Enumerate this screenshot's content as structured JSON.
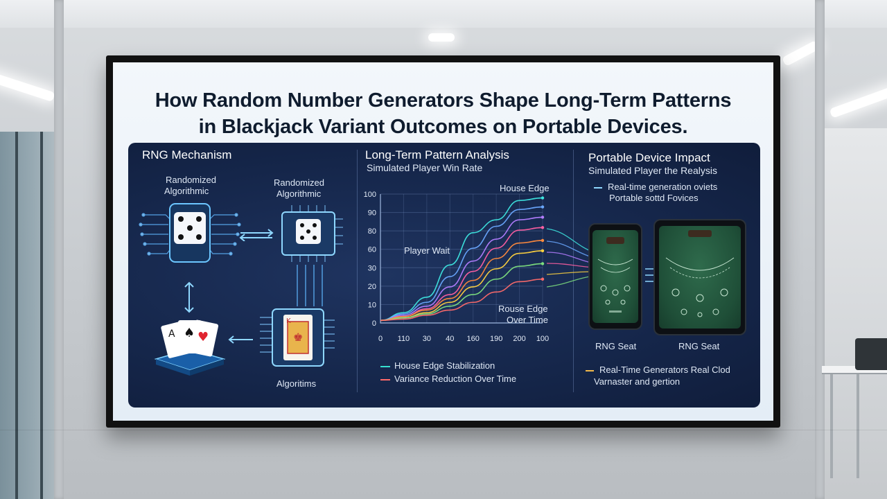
{
  "title_line1": "How Random Number Generators Shape Long-Term Patterns",
  "title_line2": "in Blackjack Variant Outcomes on Portable Devices.",
  "rng": {
    "title": "RNG Mechanism",
    "label_left": [
      "Randomized",
      "Algorithmic"
    ],
    "label_right": [
      "Randomized",
      "Algorithmic"
    ],
    "label_bottom": "Algoritims"
  },
  "pattern": {
    "title": "Long-Term Pattern Analysis",
    "subtitle": "Simulated Player Win Rate",
    "label_house_edge": "House Edge",
    "label_player": "Player Wait",
    "label_house_edge_time": [
      "Rouse Edge",
      "Over Time"
    ],
    "legend1": "House Edge Stabilization",
    "legend2": "Variance Reduction Over Time",
    "colors": {
      "legend1": "#37e0d0",
      "legend2": "#ff6a6a"
    }
  },
  "device": {
    "title": "Portable Device Impact",
    "subtitle": "Simulated Player the Realysis",
    "note_line1": "Real-time generation oviets",
    "note_line2": "Portable sottd Fovices",
    "label_phone": "RNG Seat",
    "label_tablet": "RNG Seat",
    "bottom_line1": "Real-Time Generators Real Clod",
    "bottom_line2": "Varnaster and gertion",
    "colors": {
      "bottom": "#f2b84a"
    }
  },
  "chart_data": {
    "type": "line",
    "x_ticks": [
      "0",
      "110",
      "30",
      "40",
      "160",
      "190",
      "200",
      "100"
    ],
    "y_ticks": [
      "100",
      "90",
      "80",
      "60",
      "30",
      "20",
      "10",
      "0"
    ],
    "series": [
      {
        "color": "#3ee6e0",
        "values": [
          2,
          8,
          20,
          45,
          70,
          80,
          95,
          97
        ]
      },
      {
        "color": "#6aa8ff",
        "values": [
          2,
          7,
          16,
          36,
          58,
          75,
          88,
          90
        ]
      },
      {
        "color": "#b37dff",
        "values": [
          2,
          6,
          13,
          28,
          48,
          65,
          80,
          82
        ]
      },
      {
        "color": "#ff5fa2",
        "values": [
          2,
          5,
          11,
          22,
          40,
          58,
          72,
          74
        ]
      },
      {
        "color": "#ff8a3d",
        "values": [
          2,
          5,
          10,
          19,
          33,
          50,
          62,
          64
        ]
      },
      {
        "color": "#ffd23f",
        "values": [
          2,
          4,
          8,
          16,
          28,
          42,
          54,
          56
        ]
      },
      {
        "color": "#7ee07e",
        "values": [
          2,
          4,
          7,
          13,
          22,
          34,
          44,
          46
        ]
      },
      {
        "color": "#ff6a6a",
        "values": [
          2,
          3,
          6,
          10,
          16,
          24,
          32,
          34
        ]
      }
    ]
  }
}
